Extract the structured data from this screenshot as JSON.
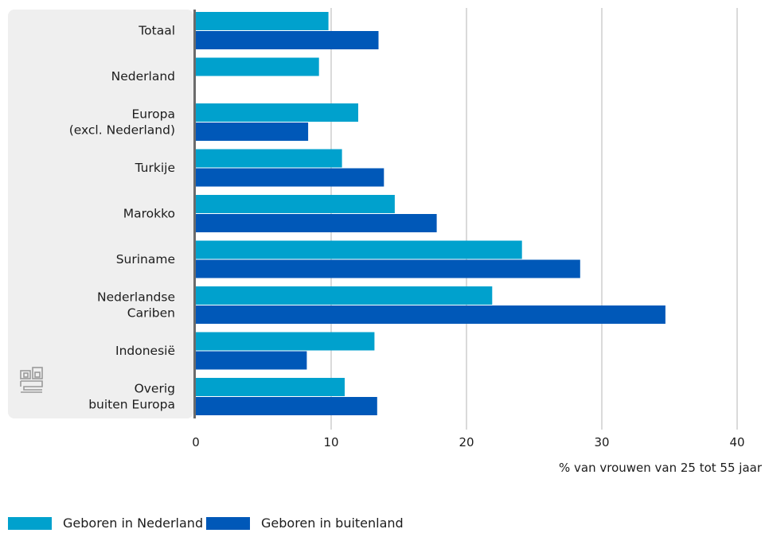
{
  "chart_data": {
    "type": "bar",
    "orientation": "horizontal",
    "categories": [
      [
        "Totaal"
      ],
      [
        "Nederland"
      ],
      [
        "Europa",
        "(excl. Nederland)"
      ],
      [
        "Turkije"
      ],
      [
        "Marokko"
      ],
      [
        "Suriname"
      ],
      [
        "Nederlandse",
        "Cariben"
      ],
      [
        "Indonesië"
      ],
      [
        "Overig",
        "buiten Europa"
      ]
    ],
    "series": [
      {
        "name": "Geboren in Nederland",
        "color": "#00a1cd",
        "values": [
          9.8,
          9.1,
          12.0,
          10.8,
          14.7,
          24.1,
          21.9,
          13.2,
          11.0
        ]
      },
      {
        "name": "Geboren in buitenland",
        "color": "#0058b8",
        "values": [
          13.5,
          null,
          8.3,
          13.9,
          17.8,
          28.4,
          34.7,
          8.2,
          13.4
        ]
      }
    ],
    "xlabel": "% van vrouwen van 25 tot 55 jaar",
    "xlim": [
      0,
      40
    ],
    "xticks": [
      0,
      10,
      20,
      30,
      40
    ],
    "grid": true,
    "legend_position": "bottom-left"
  },
  "logo": {
    "name": "cbs-logo-icon"
  }
}
